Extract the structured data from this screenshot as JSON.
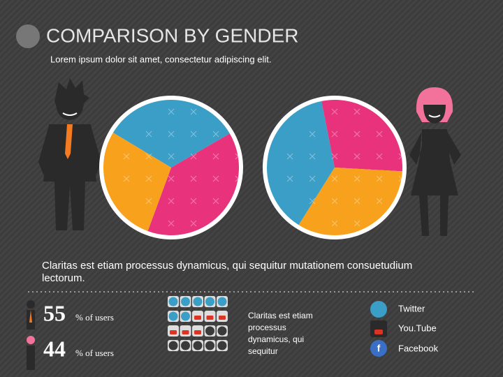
{
  "title": "COMPARISON BY GENDER",
  "subtitle": "Lorem ipsum dolor sit amet, consectetur adipiscing elit.",
  "chart_data": [
    {
      "type": "pie",
      "values": [
        33,
        39,
        28
      ],
      "colors": [
        "#3a9ec6",
        "#e8327c",
        "#f8a11c"
      ]
    },
    {
      "type": "pie",
      "values": [
        38,
        29,
        33
      ],
      "colors": [
        "#3a9ec6",
        "#e8327c",
        "#f8a11c"
      ]
    }
  ],
  "body_text": "Claritas est etiam processus dynamicus, qui sequitur mutationem consuetudium lectorum.",
  "stats": [
    {
      "value": 55,
      "label": "% of users"
    },
    {
      "value": 44,
      "label": "% of users"
    }
  ],
  "side_text": "Claritas est etiam processus dynamicus, qui sequitur",
  "legend": [
    "Twitter",
    "You.Tube",
    "Facebook"
  ]
}
